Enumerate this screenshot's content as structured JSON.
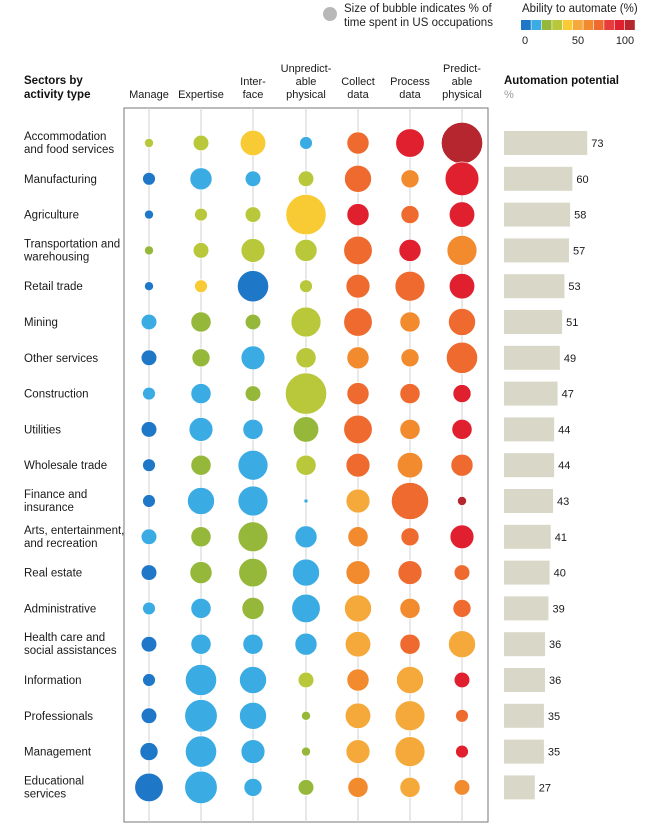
{
  "chart_data": {
    "type": "bubble-matrix-with-bar",
    "legend": {
      "size_line1": "Size of bubble indicates % of",
      "size_line2": "time spent in US occupations",
      "color_title": "Ability to automate (%)",
      "color_ticks": [
        "0",
        "50",
        "100"
      ],
      "color_scale": [
        "#1f77c8",
        "#3aabe3",
        "#96b83a",
        "#b8c83a",
        "#f8cb35",
        "#f5a93a",
        "#f28a2e",
        "#ef6a2e",
        "#e83c3c",
        "#e0202e",
        "#b5262e"
      ]
    },
    "row_header": [
      "Sectors by",
      "activity type"
    ],
    "columns": [
      {
        "lines": [
          "Manage"
        ]
      },
      {
        "lines": [
          "Expertise"
        ]
      },
      {
        "lines": [
          "Inter-",
          "face"
        ]
      },
      {
        "lines": [
          "Unpredict-",
          "able",
          "physical"
        ]
      },
      {
        "lines": [
          "Collect",
          "data"
        ]
      },
      {
        "lines": [
          "Process",
          "data"
        ]
      },
      {
        "lines": [
          "Predict-",
          "able",
          "physical"
        ]
      }
    ],
    "bar_header": {
      "title": "Automation potential",
      "unit": "%"
    },
    "bar_max": 100,
    "rows": [
      {
        "label": [
          "Accommodation",
          "and food services"
        ],
        "potential": 73,
        "bubbles": [
          [
            1,
            3
          ],
          [
            3,
            3
          ],
          [
            8,
            4
          ],
          [
            2,
            1
          ],
          [
            6,
            7
          ],
          [
            10,
            9
          ],
          [
            21,
            10
          ]
        ]
      },
      {
        "label": [
          "Manufacturing"
        ],
        "potential": 60,
        "bubbles": [
          [
            2,
            0
          ],
          [
            6,
            1
          ],
          [
            3,
            1
          ],
          [
            3,
            3
          ],
          [
            9,
            7
          ],
          [
            4,
            6
          ],
          [
            14,
            9
          ]
        ]
      },
      {
        "label": [
          "Agriculture"
        ],
        "potential": 58,
        "bubbles": [
          [
            1,
            0
          ],
          [
            2,
            3
          ],
          [
            3,
            3
          ],
          [
            20,
            4
          ],
          [
            6,
            9
          ],
          [
            4,
            7
          ],
          [
            8,
            9
          ]
        ]
      },
      {
        "label": [
          "Transportation and",
          "warehousing"
        ],
        "potential": 57,
        "bubbles": [
          [
            1,
            2
          ],
          [
            3,
            3
          ],
          [
            7,
            3
          ],
          [
            6,
            3
          ],
          [
            10,
            7
          ],
          [
            6,
            9
          ],
          [
            11,
            6
          ]
        ]
      },
      {
        "label": [
          "Retail trade"
        ],
        "potential": 53,
        "bubbles": [
          [
            1,
            0
          ],
          [
            2,
            4
          ],
          [
            12,
            0
          ],
          [
            2,
            3
          ],
          [
            7,
            7
          ],
          [
            11,
            7
          ],
          [
            8,
            9
          ]
        ]
      },
      {
        "label": [
          "Mining"
        ],
        "potential": 51,
        "bubbles": [
          [
            3,
            1
          ],
          [
            5,
            2
          ],
          [
            3,
            2
          ],
          [
            11,
            3
          ],
          [
            10,
            7
          ],
          [
            5,
            6
          ],
          [
            9,
            7
          ]
        ]
      },
      {
        "label": [
          "Other services"
        ],
        "potential": 49,
        "bubbles": [
          [
            3,
            0
          ],
          [
            4,
            2
          ],
          [
            7,
            1
          ],
          [
            5,
            3
          ],
          [
            6,
            6
          ],
          [
            4,
            6
          ],
          [
            12,
            7
          ]
        ]
      },
      {
        "label": [
          "Construction"
        ],
        "potential": 47,
        "bubbles": [
          [
            2,
            1
          ],
          [
            5,
            1
          ],
          [
            3,
            2
          ],
          [
            21,
            3
          ],
          [
            6,
            7
          ],
          [
            5,
            7
          ],
          [
            4,
            9
          ]
        ]
      },
      {
        "label": [
          "Utilities"
        ],
        "potential": 44,
        "bubbles": [
          [
            3,
            0
          ],
          [
            7,
            1
          ],
          [
            5,
            1
          ],
          [
            8,
            2
          ],
          [
            10,
            7
          ],
          [
            5,
            6
          ],
          [
            5,
            9
          ]
        ]
      },
      {
        "label": [
          "Wholesale trade"
        ],
        "potential": 44,
        "bubbles": [
          [
            2,
            0
          ],
          [
            5,
            2
          ],
          [
            11,
            1
          ],
          [
            5,
            3
          ],
          [
            7,
            7
          ],
          [
            8,
            6
          ],
          [
            6,
            7
          ]
        ]
      },
      {
        "label": [
          "Finance and",
          "insurance"
        ],
        "potential": 43,
        "bubbles": [
          [
            2,
            0
          ],
          [
            9,
            1
          ],
          [
            11,
            1
          ],
          [
            0.2,
            1
          ],
          [
            7,
            5
          ],
          [
            17,
            7
          ],
          [
            1,
            10
          ]
        ]
      },
      {
        "label": [
          "Arts, entertainment,",
          "and recreation"
        ],
        "potential": 41,
        "bubbles": [
          [
            3,
            1
          ],
          [
            5,
            2
          ],
          [
            11,
            2
          ],
          [
            6,
            1
          ],
          [
            5,
            6
          ],
          [
            4,
            7
          ],
          [
            7,
            9
          ]
        ]
      },
      {
        "label": [
          "Real estate"
        ],
        "potential": 40,
        "bubbles": [
          [
            3,
            0
          ],
          [
            6,
            2
          ],
          [
            10,
            2
          ],
          [
            9,
            1
          ],
          [
            7,
            6
          ],
          [
            7,
            7
          ],
          [
            3,
            7
          ]
        ]
      },
      {
        "label": [
          "Administrative"
        ],
        "potential": 39,
        "bubbles": [
          [
            2,
            1
          ],
          [
            5,
            1
          ],
          [
            6,
            2
          ],
          [
            10,
            1
          ],
          [
            9,
            5
          ],
          [
            5,
            6
          ],
          [
            4,
            7
          ]
        ]
      },
      {
        "label": [
          "Health care and",
          "social assistances"
        ],
        "potential": 36,
        "bubbles": [
          [
            3,
            0
          ],
          [
            5,
            1
          ],
          [
            5,
            1
          ],
          [
            6,
            1
          ],
          [
            8,
            5
          ],
          [
            5,
            7
          ],
          [
            9,
            5
          ]
        ]
      },
      {
        "label": [
          "Information"
        ],
        "potential": 36,
        "bubbles": [
          [
            2,
            0
          ],
          [
            12,
            1
          ],
          [
            9,
            1
          ],
          [
            3,
            3
          ],
          [
            6,
            6
          ],
          [
            9,
            5
          ],
          [
            3,
            9
          ]
        ]
      },
      {
        "label": [
          "Professionals"
        ],
        "potential": 35,
        "bubbles": [
          [
            3,
            0
          ],
          [
            13,
            1
          ],
          [
            9,
            1
          ],
          [
            1,
            2
          ],
          [
            8,
            5
          ],
          [
            11,
            5
          ],
          [
            2,
            7
          ]
        ]
      },
      {
        "label": [
          "Management"
        ],
        "potential": 35,
        "bubbles": [
          [
            4,
            0
          ],
          [
            12,
            1
          ],
          [
            7,
            1
          ],
          [
            1,
            2
          ],
          [
            7,
            5
          ],
          [
            11,
            5
          ],
          [
            2,
            9
          ]
        ]
      },
      {
        "label": [
          "Educational",
          "services"
        ],
        "potential": 27,
        "bubbles": [
          [
            10,
            0
          ],
          [
            13,
            1
          ],
          [
            4,
            1
          ],
          [
            3,
            2
          ],
          [
            5,
            6
          ],
          [
            5,
            5
          ],
          [
            3,
            6
          ]
        ]
      }
    ]
  }
}
